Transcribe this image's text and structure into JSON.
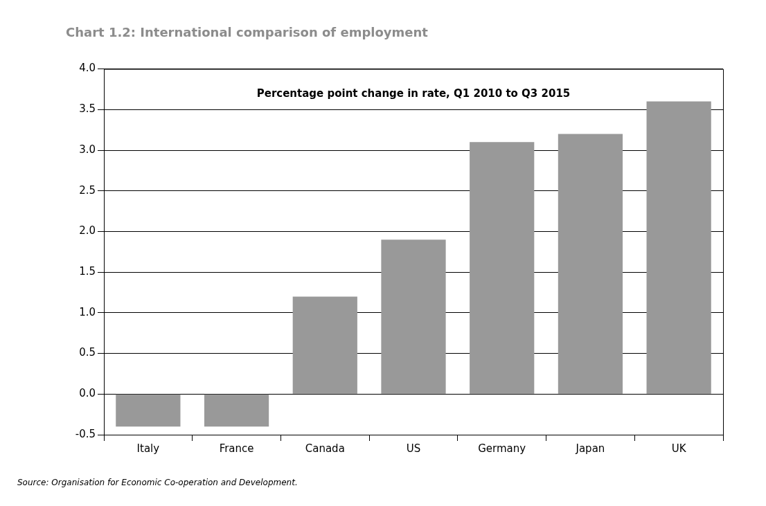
{
  "chart_data": {
    "type": "bar",
    "title": "Chart 1.2: International comparison of employment",
    "subtitle": "Percentage point change in rate, Q1 2010 to Q3 2015",
    "annotations": [
      "Source: Organisation for Economic Co-operation and Development."
    ],
    "categories": [
      "Italy",
      "France",
      "Canada",
      "US",
      "Germany",
      "Japan",
      "UK"
    ],
    "values": [
      -0.4,
      -0.4,
      1.2,
      1.9,
      3.1,
      3.2,
      3.6
    ],
    "color": "#999999",
    "ylim": [
      -0.5,
      4.0
    ],
    "yticks": [
      {
        "value": -0.5,
        "label": "-0.5"
      },
      {
        "value": 0,
        "label": "0.0"
      },
      {
        "value": 0.5,
        "label": "0.5"
      },
      {
        "value": 1,
        "label": "1.0"
      },
      {
        "value": 1.5,
        "label": "1.5"
      },
      {
        "value": 2,
        "label": "2.0"
      },
      {
        "value": 2.5,
        "label": "2.5"
      },
      {
        "value": 3,
        "label": "3.0"
      },
      {
        "value": 3.5,
        "label": "3.5"
      },
      {
        "value": 4,
        "label": "4.0"
      }
    ],
    "grid": "y",
    "legend": false
  }
}
